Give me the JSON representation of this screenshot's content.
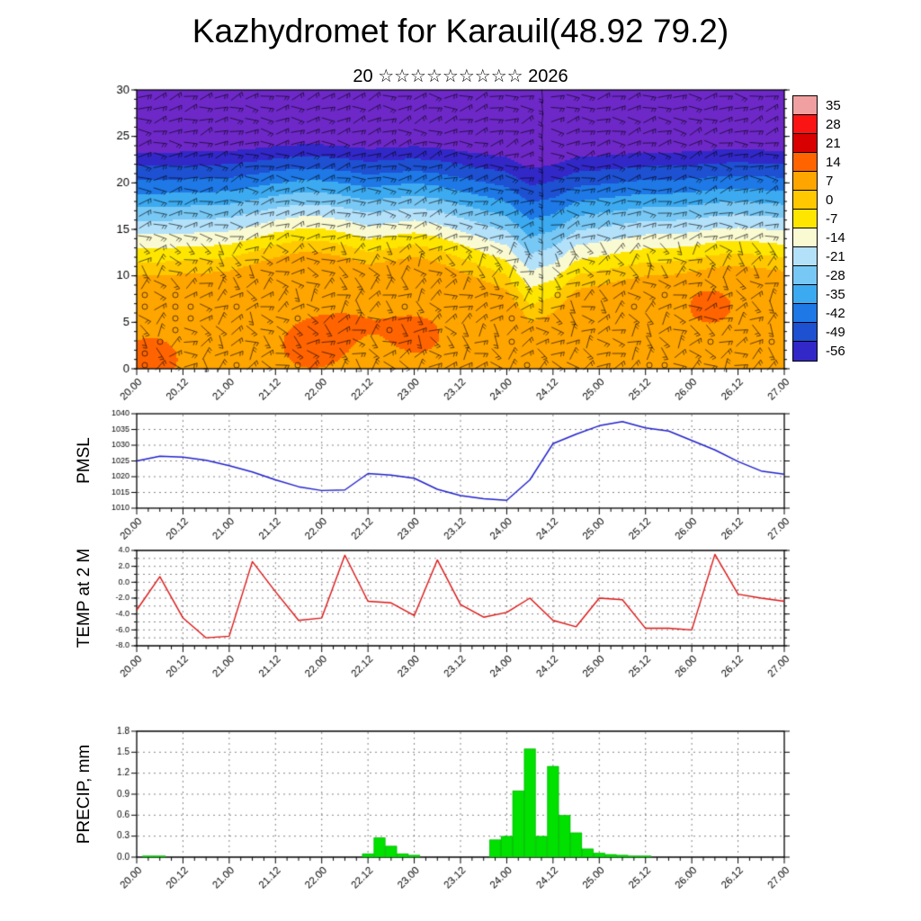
{
  "title": "Kazhydromet for Karauil(48.92 79.2)",
  "subtitle": "20 ☆☆☆☆☆☆☆☆☆ 2026",
  "time_axis": {
    "range": [
      20.0,
      27.0
    ],
    "minor_step_days": 0.125,
    "major_times": [
      20.0,
      20.5,
      21.0,
      21.5,
      22.0,
      22.5,
      23.0,
      23.5,
      24.0,
      24.5,
      25.0,
      25.5,
      26.0,
      26.5,
      27.0
    ],
    "labels": [
      "20.00",
      "20.12",
      "21.00",
      "21.12",
      "22.00",
      "22.12",
      "23.00",
      "23.12",
      "24.00",
      "24.12",
      "25.00",
      "25.12",
      "26.00",
      "26.12",
      "27.00"
    ]
  },
  "chart_data": [
    {
      "type": "heatmap",
      "name": "temperature-wind-cross-section",
      "description": "Time-height cross section: shaded temperature (deg C) with wind barbs",
      "y_range": [
        0,
        30
      ],
      "y_label_values": [
        0,
        5,
        10,
        15,
        20,
        25,
        30
      ],
      "levels": [
        35,
        28,
        21,
        14,
        7,
        0,
        -7,
        -14,
        -21,
        -28,
        -35,
        -42,
        -49,
        -56
      ],
      "colorbar_position": "right",
      "colors": [
        "#f0a0a0",
        "#fa1414",
        "#d80000",
        "#ff6400",
        "#ffa500",
        "#ffc800",
        "#ffe600",
        "#fafad2",
        "#b4e1fa",
        "#78c8f5",
        "#3caaf0",
        "#1e78e6",
        "#1e50d2",
        "#3228c8",
        "#6e28c8"
      ],
      "wind_barbs": true,
      "profile": {
        "times": [
          20.0,
          20.25,
          20.5,
          20.75,
          21.0,
          21.25,
          21.5,
          21.75,
          22.0,
          22.25,
          22.5,
          22.75,
          23.0,
          23.25,
          23.5,
          23.75,
          24.0,
          24.25,
          24.5,
          24.75,
          25.0,
          25.25,
          25.5,
          25.75,
          26.0,
          26.25,
          26.5,
          26.75,
          27.0
        ],
        "warm_top": [
          10,
          10,
          10.2,
          10.3,
          10.5,
          11.2,
          12,
          12.5,
          12.5,
          12,
          11.2,
          11.6,
          12,
          11.5,
          10.5,
          9.5,
          8.5,
          5,
          6,
          8.5,
          9,
          9.5,
          10,
          10,
          10.3,
          10.8,
          11,
          10.8,
          10.5
        ],
        "surface_temp": 11,
        "warm_cores": [
          {
            "t": 20.15,
            "h": 1.5,
            "amp": 5
          },
          {
            "t": 21.9,
            "h": 3,
            "amp": 6
          },
          {
            "t": 23.05,
            "h": 4,
            "amp": 5
          },
          {
            "t": 26.2,
            "h": 7,
            "amp": 6
          },
          {
            "t": 22.4,
            "h": 6,
            "amp": 3
          }
        ]
      }
    },
    {
      "type": "line",
      "name": "pmsl",
      "title": "PMSL",
      "color": "#2020cc",
      "ylim": [
        1010,
        1040
      ],
      "yticks": [
        1010,
        1015,
        1020,
        1025,
        1030,
        1035,
        1040
      ],
      "ytick_labels": [
        "1010",
        "1015",
        "1020",
        "1025",
        "1030",
        "1035",
        "1040"
      ],
      "grid_step": 5,
      "x": [
        20.0,
        20.25,
        20.5,
        20.75,
        21.0,
        21.25,
        21.5,
        21.75,
        22.0,
        22.25,
        22.5,
        22.75,
        23.0,
        23.25,
        23.5,
        23.75,
        24.0,
        24.25,
        24.5,
        24.75,
        25.0,
        25.25,
        25.5,
        25.75,
        26.0,
        26.25,
        26.5,
        26.75,
        27.0
      ],
      "values": [
        1025.0,
        1026.5,
        1026.2,
        1025.2,
        1023.5,
        1021.5,
        1019.0,
        1016.8,
        1015.6,
        1015.8,
        1021.0,
        1020.5,
        1019.5,
        1016.0,
        1014.0,
        1013.0,
        1012.5,
        1019.0,
        1030.5,
        1033.5,
        1036.2,
        1037.5,
        1035.5,
        1034.5,
        1031.5,
        1028.5,
        1024.8,
        1021.8,
        1020.8
      ]
    },
    {
      "type": "line",
      "name": "temp-2m",
      "title": "TEMP at 2 M",
      "color": "#dc1414",
      "ylim": [
        -8,
        4
      ],
      "yticks": [
        -8,
        -6,
        -4,
        -2,
        0,
        2,
        4
      ],
      "ytick_labels": [
        "-8.0",
        "-6.0",
        "-4.0",
        "-2.0",
        "0.0",
        "2.0",
        "4.0"
      ],
      "grid_step": 1,
      "x": [
        20.0,
        20.25,
        20.5,
        20.75,
        21.0,
        21.25,
        21.5,
        21.75,
        22.0,
        22.25,
        22.5,
        22.75,
        23.0,
        23.25,
        23.5,
        23.75,
        24.0,
        24.25,
        24.5,
        24.75,
        25.0,
        25.25,
        25.5,
        25.75,
        26.0,
        26.25,
        26.5,
        26.75,
        27.0
      ],
      "values": [
        -3.5,
        0.7,
        -4.5,
        -7.0,
        -6.8,
        2.6,
        -1.2,
        -4.8,
        -4.5,
        3.4,
        -2.4,
        -2.6,
        -4.2,
        2.8,
        -2.8,
        -4.4,
        -3.8,
        -2.0,
        -4.8,
        -5.6,
        -2.0,
        -2.2,
        -5.8,
        -5.8,
        -6.0,
        3.5,
        -1.5,
        -2.0,
        -2.4
      ]
    },
    {
      "type": "bar",
      "name": "precip",
      "title": "PRECIP, mm",
      "color": "#00e100",
      "ylim": [
        0,
        1.8
      ],
      "yticks": [
        0,
        0.3,
        0.6,
        0.9,
        1.2,
        1.5,
        1.8
      ],
      "ytick_labels": [
        "0.0",
        "0.3",
        "0.6",
        "0.9",
        "1.2",
        "1.5",
        "1.8"
      ],
      "grid_step": 0.3,
      "bar_width_days": 0.125,
      "points": [
        [
          20.125,
          0.02
        ],
        [
          20.25,
          0.02
        ],
        [
          22.5,
          0.05
        ],
        [
          22.625,
          0.28
        ],
        [
          22.75,
          0.16
        ],
        [
          22.875,
          0.05
        ],
        [
          23.0,
          0.03
        ],
        [
          23.875,
          0.25
        ],
        [
          24.0,
          0.3
        ],
        [
          24.125,
          0.95
        ],
        [
          24.25,
          1.55
        ],
        [
          24.375,
          0.3
        ],
        [
          24.5,
          1.3
        ],
        [
          24.625,
          0.6
        ],
        [
          24.75,
          0.35
        ],
        [
          24.875,
          0.12
        ],
        [
          25.0,
          0.06
        ],
        [
          25.125,
          0.04
        ],
        [
          25.25,
          0.03
        ],
        [
          25.375,
          0.02
        ],
        [
          25.5,
          0.02
        ]
      ]
    }
  ]
}
